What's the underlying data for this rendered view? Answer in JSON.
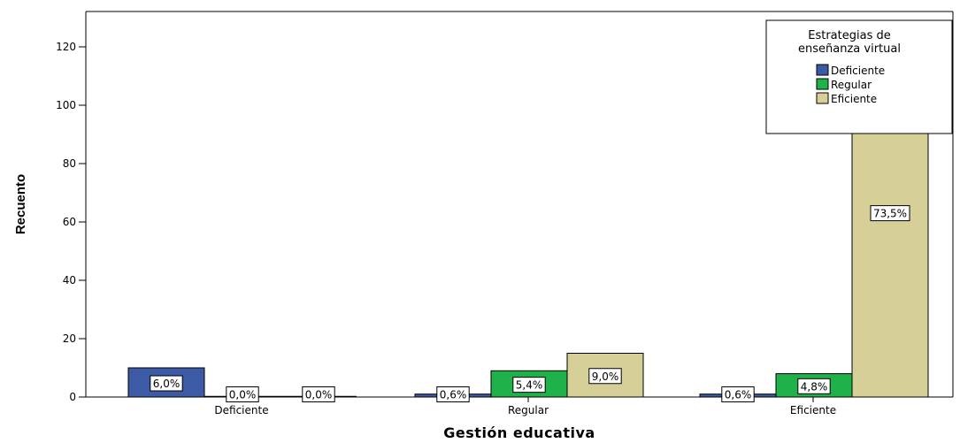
{
  "chart_data": {
    "type": "bar",
    "categories": [
      "Deficiente",
      "Regular",
      "Eficiente"
    ],
    "series": [
      {
        "name": "Deficiente",
        "color": "#3c5aa6",
        "values": [
          10,
          1,
          1
        ],
        "labels": [
          "6,0%",
          "0,6%",
          "0,6%"
        ]
      },
      {
        "name": "Regular",
        "color": "#20b24a",
        "values": [
          0,
          9,
          8
        ],
        "labels": [
          "0,0%",
          "5,4%",
          "4,8%"
        ]
      },
      {
        "name": "Eficiente",
        "color": "#d6cf98",
        "values": [
          0,
          15,
          122
        ],
        "labels": [
          "0,0%",
          "9,0%",
          "73,5%"
        ]
      }
    ],
    "xlabel": "Gestión educativa",
    "ylabel": "Recuento",
    "ylim": [
      0,
      130
    ],
    "yticks": [
      0,
      20,
      40,
      60,
      80,
      100,
      120
    ],
    "grid": false,
    "legend": {
      "title_lines": [
        "Estrategias de",
        "enseñanza virtual"
      ],
      "placement": "top-right"
    }
  }
}
